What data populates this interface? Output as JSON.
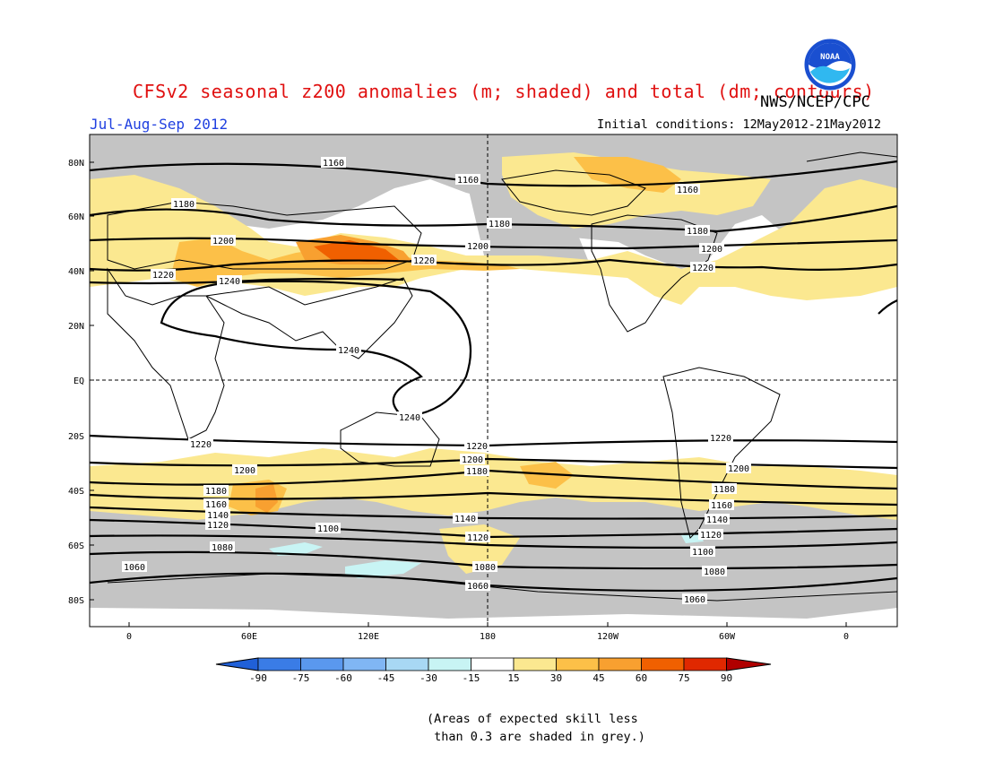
{
  "header": {
    "title": "CFSv2 seasonal z200 anomalies (m; shaded) and total (dm; contours)",
    "season": "Jul-Aug-Sep 2012",
    "organization": "NWS/NCEP/CPC",
    "initial_conditions": "Initial conditions: 12May2012-21May2012",
    "logo_text": "NOAA"
  },
  "map": {
    "lat_labels": [
      "80N",
      "60N",
      "40N",
      "20N",
      "EQ",
      "20S",
      "40S",
      "60S",
      "80S"
    ],
    "lon_labels": [
      "0",
      "60E",
      "120E",
      "180",
      "120W",
      "60W",
      "0"
    ],
    "contours": [
      {
        "value": "1060",
        "label_positions": [
          "150,632",
          "533,653",
          "775,668"
        ]
      },
      {
        "value": "1080",
        "label_positions": [
          "248,610",
          "541,632",
          "797,637"
        ]
      },
      {
        "value": "1100",
        "label_positions": [
          "366,589",
          "784,615"
        ]
      },
      {
        "value": "1120",
        "label_positions": [
          "243,585",
          "533,599",
          "793,596"
        ]
      },
      {
        "value": "1140",
        "label_positions": [
          "243,574",
          "519,578",
          "800,579"
        ]
      },
      {
        "value": "1160",
        "label_positions": [
          "241,562",
          "1211,181",
          "522,200",
          "767,211",
          "805,563"
        ],
        "north": true
      },
      {
        "value": "1180",
        "label_positions": [
          "241,547",
          "532,525",
          "808,545",
          "205,227",
          "557,249",
          "778,257"
        ]
      },
      {
        "value": "1200",
        "label_positions": [
          "273,524",
          "527,512",
          "824,522",
          "249,268",
          "533,274",
          "794,277"
        ]
      },
      {
        "value": "1220",
        "label_positions": [
          "224,495",
          "532,497",
          "804,488",
          "182,306",
          "473,290",
          "784,298"
        ]
      },
      {
        "value": "1240",
        "label_positions": [
          "256,313",
          "389,390",
          "457,465"
        ]
      }
    ],
    "colorbar": {
      "ticks": [
        "-90",
        "-75",
        "-60",
        "-45",
        "-30",
        "-15",
        "15",
        "30",
        "45",
        "60",
        "75",
        "90"
      ],
      "colors": [
        "#2060d8",
        "#3a7ce6",
        "#5a98ee",
        "#80b6f4",
        "#a8d8f4",
        "#c8f4f4",
        "#ffffff",
        "#fbe890",
        "#fcc048",
        "#f8a030",
        "#f06000",
        "#e02800",
        "#b00000"
      ]
    }
  },
  "footer": {
    "note": "(Areas of expected skill less\n than 0.3 are shaded in grey.)"
  }
}
